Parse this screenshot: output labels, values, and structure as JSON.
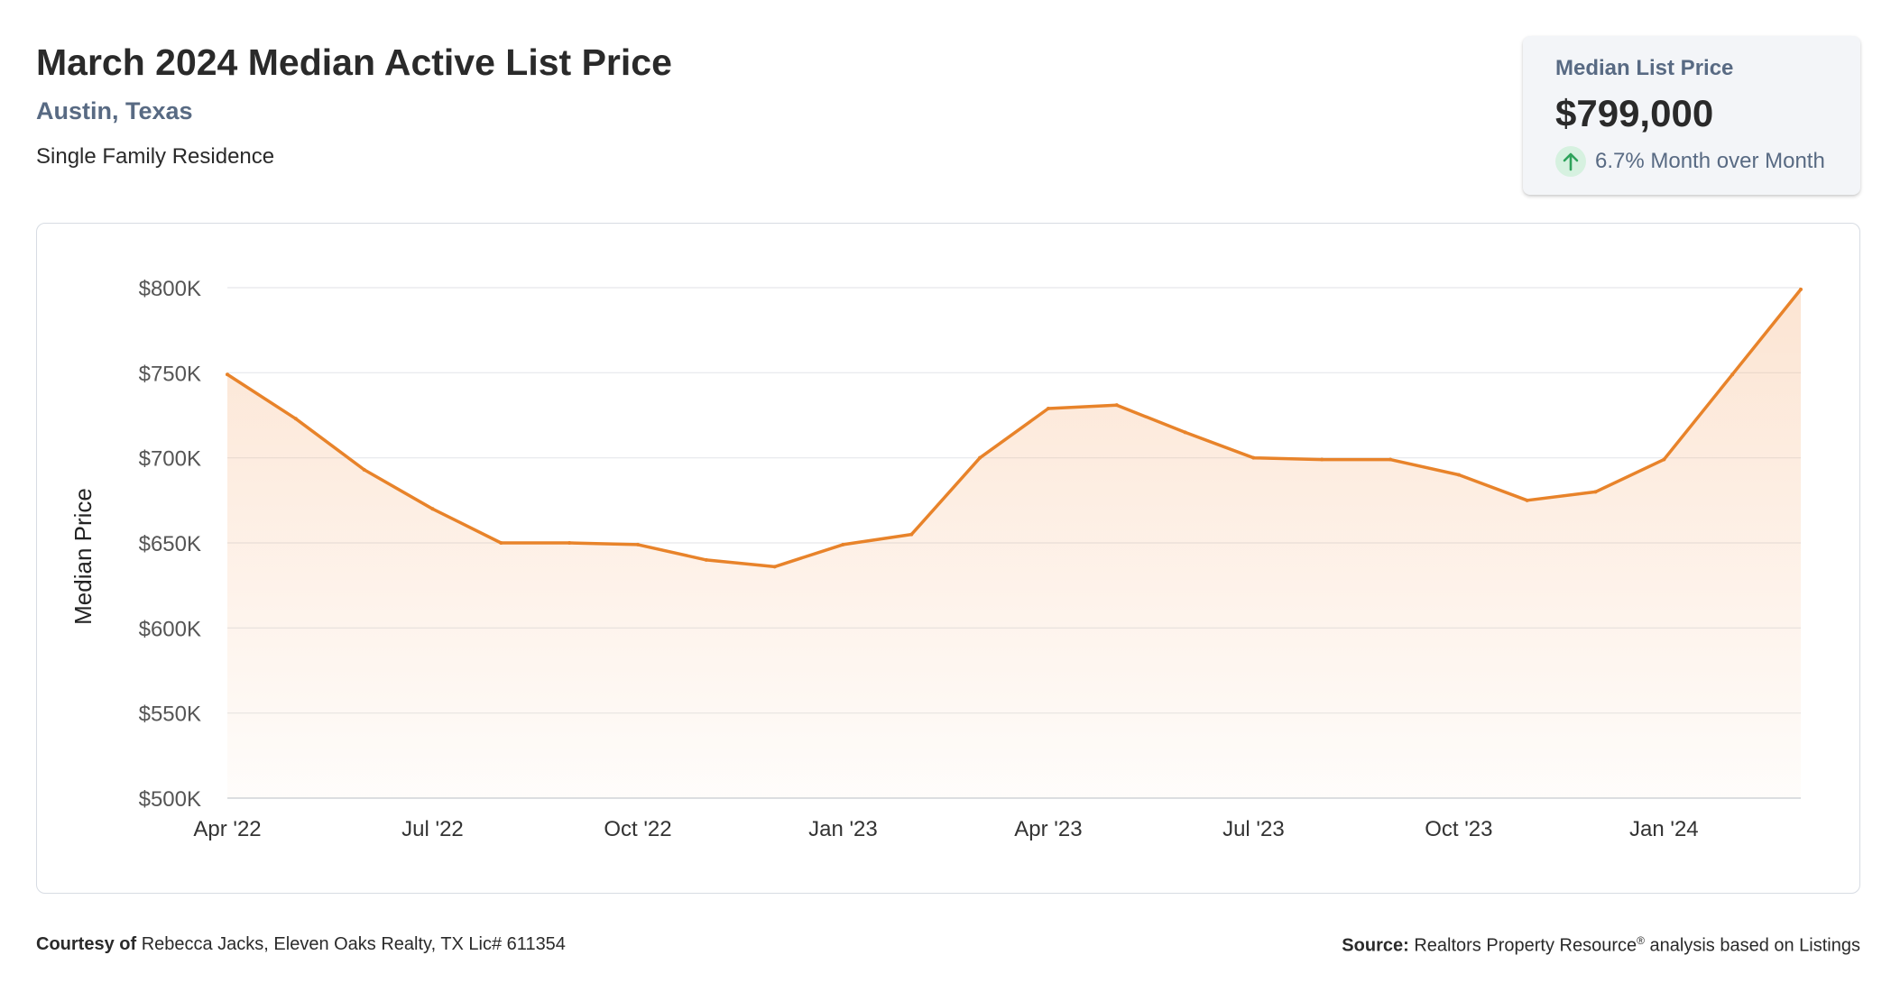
{
  "header": {
    "title": "March 2024 Median Active List Price",
    "location": "Austin, Texas",
    "property_type": "Single Family Residence"
  },
  "stat_card": {
    "label": "Median List Price",
    "value": "$799,000",
    "change": "6.7% Month over Month",
    "direction": "up",
    "accent_color": "#2ea35b"
  },
  "chart_data": {
    "type": "area",
    "title": "",
    "xlabel": "",
    "ylabel": "Median Price",
    "x": [
      "2022-04",
      "2022-05",
      "2022-06",
      "2022-07",
      "2022-08",
      "2022-09",
      "2022-10",
      "2022-11",
      "2022-12",
      "2023-01",
      "2023-02",
      "2023-03",
      "2023-04",
      "2023-05",
      "2023-06",
      "2023-07",
      "2023-08",
      "2023-09",
      "2023-10",
      "2023-11",
      "2023-12",
      "2024-01",
      "2024-02",
      "2024-03"
    ],
    "series": [
      {
        "values": [
          749000,
          723000,
          693000,
          670000,
          650000,
          650000,
          649000,
          640000,
          636000,
          649000,
          655000,
          700000,
          729000,
          731000,
          715000,
          700000,
          699000,
          699000,
          690000,
          675000,
          680000,
          699000,
          749000,
          799000
        ],
        "color": "#e8832a"
      }
    ],
    "ylim": [
      500000,
      800000
    ],
    "y_ticks": [
      500000,
      550000,
      600000,
      650000,
      700000,
      750000,
      800000
    ],
    "y_tick_labels": [
      "$500K",
      "$550K",
      "$600K",
      "$650K",
      "$700K",
      "$750K",
      "$800K"
    ],
    "x_ticks": [
      "2022-04",
      "2022-07",
      "2022-10",
      "2023-01",
      "2023-04",
      "2023-07",
      "2023-10",
      "2024-01"
    ],
    "x_tick_labels": [
      "Apr '22",
      "Jul '22",
      "Oct '22",
      "Jan '23",
      "Apr '23",
      "Jul '23",
      "Oct '23",
      "Jan '24"
    ],
    "grid": true,
    "legend": "none",
    "fill_color": "#f5a66a"
  },
  "footer": {
    "courtesy_label": "Courtesy of",
    "courtesy_text": "Rebecca Jacks, Eleven Oaks Realty, TX Lic# 611354",
    "source_label": "Source:",
    "source_text": "Realtors Property Resource",
    "source_mark": "®",
    "source_suffix": "analysis based on Listings"
  }
}
